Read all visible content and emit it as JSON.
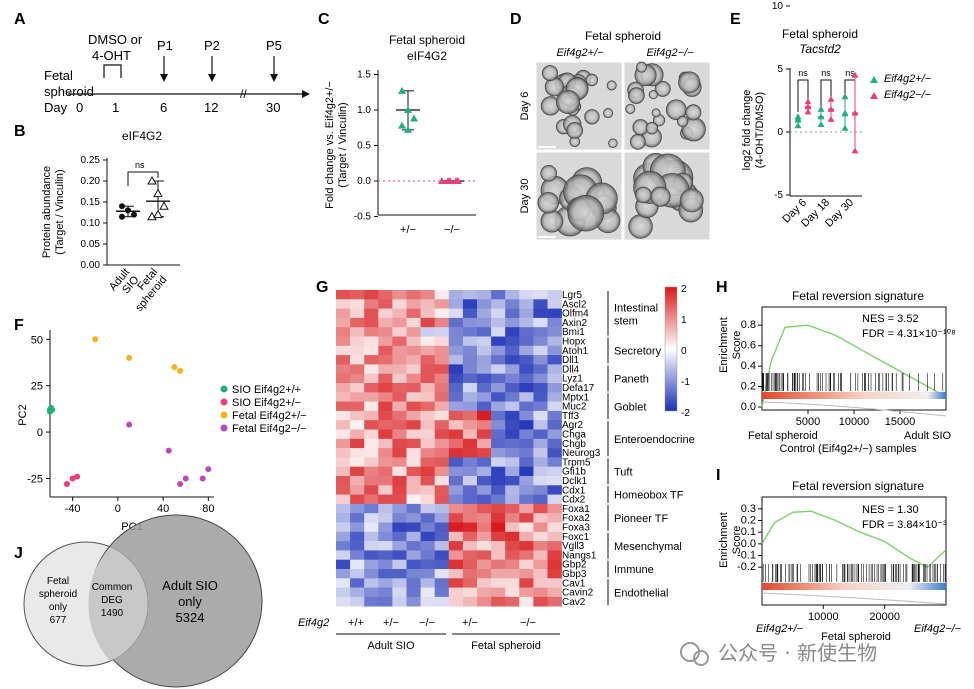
{
  "panels": {
    "A": {
      "letter": "A",
      "treatment": [
        "DMSO or",
        "4-OHT"
      ],
      "row_label": [
        "Fetal",
        "spheroid"
      ],
      "day_label": "Day",
      "days": [
        "0",
        "1",
        "6",
        "12",
        "30"
      ],
      "passages": [
        "P1",
        "P2",
        "P5"
      ]
    },
    "B": {
      "letter": "B",
      "title": "eIF4G2",
      "ylabel": [
        "Protein abundance",
        "(Target / Vinculin)"
      ],
      "yticks": [
        "0.00",
        "0.05",
        "0.10",
        "0.15",
        "0.20",
        "0.25"
      ],
      "categories": [
        "Adult SIO",
        "Fetal spheroid"
      ],
      "ns": "ns"
    },
    "C": {
      "letter": "C",
      "title": [
        "Fetal spheroid",
        "eIF4G2"
      ],
      "ylabel": [
        "Fold change vs. Eif4g2+/−",
        "(Target / Vinculin)"
      ],
      "yticks": [
        "1.5",
        "1.0",
        "0.5",
        "0.0",
        "-0.5"
      ],
      "categories": [
        "+/−",
        "−/−"
      ]
    },
    "D": {
      "letter": "D",
      "title": "Fetal spheroid",
      "columns": [
        "Eif4g2+/−",
        "Eif4g2−/−"
      ],
      "rows": [
        "Day 6",
        "Day 30"
      ]
    },
    "E": {
      "letter": "E",
      "title": [
        "Fetal spheroid",
        "Tacstd2"
      ],
      "ylabel": [
        "log2 fold change",
        "(4-OHT/DMSO)"
      ],
      "yticks": [
        "10",
        "5",
        "0",
        "-5"
      ],
      "categories": [
        "Day 6",
        "Day 18",
        "Day 30"
      ],
      "ns": [
        "ns",
        "ns",
        "ns"
      ],
      "legend": [
        "Eif4g2+/−",
        "Eif4g2−/−"
      ],
      "colors": [
        "#21b07a",
        "#e8417a"
      ]
    },
    "F": {
      "letter": "F",
      "xlabel": "PC1",
      "ylabel": "PC2",
      "xticks": [
        "-40",
        "0",
        "40",
        "80"
      ],
      "yticks": [
        "50",
        "25",
        "0",
        "-25"
      ],
      "legend": [
        "SIO Eif4g2+/+",
        "SIO Eif4g2+/−",
        "Fetal Eif4g2+/−",
        "Fetal Eif4g2−/−"
      ],
      "colors": [
        "#21b07a",
        "#e8417a",
        "#f2b31f",
        "#b94ab8"
      ]
    },
    "G": {
      "letter": "G",
      "colorbar": [
        "2",
        "1",
        "0",
        "-1",
        "-2"
      ],
      "genes": [
        "Lgr5",
        "Ascl2",
        "Olfm4",
        "Axin2",
        "Bmi1",
        "Hopx",
        "Atoh1",
        "Dll1",
        "Dll4",
        "Lyz1",
        "Defa17",
        "Mptx1",
        "Muc2",
        "Tff3",
        "Agr2",
        "Chga",
        "Chgb",
        "Neurog3",
        "Trpm5",
        "Gfi1b",
        "Dclk1",
        "Cdx1",
        "Cdx2",
        "Foxa1",
        "Foxa2",
        "Foxa3",
        "Foxc1",
        "Vgll3",
        "Nangs1",
        "Gbp2",
        "Gbp3",
        "Cav1",
        "Cavin2",
        "Cav2"
      ],
      "groups": [
        "Intestinal stem",
        "Secretory",
        "Paneth",
        "Goblet",
        "Enteroendocrine",
        "Tuft",
        "Homeobox TF",
        "Pioneer TF",
        "Mesenchymal",
        "Immune",
        "Endothelial"
      ],
      "genotype_label": "Eif4g2",
      "genotypes": [
        "+/+",
        "+/−",
        "−/−",
        "+/−",
        "−/−"
      ],
      "conditions": [
        "Adult SIO",
        "Fetal spheroid"
      ]
    },
    "H": {
      "letter": "H",
      "title": "Fetal reversion signature",
      "ylabel": [
        "Enrichment",
        "Score"
      ],
      "yticks": [
        "0.8",
        "0.6",
        "0.4",
        "0.2",
        "0.0"
      ],
      "xticks": [
        "5000",
        "10000",
        "15000"
      ],
      "nes": "NES = 3.52",
      "fdr": "FDR = 4.31×10⁻¹⁰⁸",
      "left_label": "Fetal spheroid",
      "right_label": "Adult SIO",
      "xlabel": "Control (Eif4g2+/−) samples"
    },
    "I": {
      "letter": "I",
      "title": "Fetal reversion signature",
      "ylabel": [
        "Enrichment",
        "Score"
      ],
      "yticks": [
        "0.3",
        "0.2",
        "0.1",
        "0.0",
        "-0.1",
        "-0.2"
      ],
      "xticks": [
        "10000",
        "20000"
      ],
      "nes": "NES = 1.30",
      "fdr": "FDR = 3.84×10⁻³",
      "left_label": "Eif4g2+/−",
      "right_label": "Eif4g2−/−",
      "xlabel": "Fetal spheroid"
    },
    "J": {
      "letter": "J",
      "left": [
        "Fetal",
        "spheroid",
        "only",
        "677"
      ],
      "middle": [
        "Common",
        "DEG",
        "1490"
      ],
      "right": [
        "Adult SIO",
        "only",
        "5324"
      ]
    }
  },
  "watermark": "公众号 · 新使生物",
  "chart_data": [
    {
      "panel": "B",
      "type": "scatter",
      "title": "eIF4G2",
      "ylim": [
        0,
        0.25
      ],
      "categories": [
        "Adult SIO",
        "Fetal spheroid"
      ],
      "series": [
        {
          "name": "Adult SIO",
          "values": [
            0.14,
            0.13,
            0.12,
            0.115,
            0.13
          ]
        },
        {
          "name": "Fetal spheroid",
          "values": [
            0.2,
            0.17,
            0.14,
            0.115,
            0.12
          ]
        }
      ],
      "means": [
        0.128,
        0.152
      ]
    },
    {
      "panel": "C",
      "type": "scatter",
      "title": "Fetal spheroid eIF4G2",
      "ylim": [
        -0.5,
        1.5
      ],
      "categories": [
        "+/−",
        "−/−"
      ],
      "series": [
        {
          "name": "+/−",
          "values": [
            1.27,
            1.0,
            0.88,
            0.78,
            0.72
          ]
        },
        {
          "name": "−/−",
          "values": [
            0.0,
            0.0,
            0.0,
            0.0,
            0.0
          ]
        }
      ],
      "means": [
        1.0,
        0.0
      ]
    },
    {
      "panel": "E",
      "type": "scatter",
      "title": "Fetal spheroid Tacstd2",
      "ylim": [
        -5,
        10
      ],
      "categories": [
        "Day 6",
        "Day 18",
        "Day 30"
      ],
      "series": [
        {
          "name": "Eif4g2+/−",
          "means": [
            0.8,
            1.2,
            1.3
          ],
          "values": [
            [
              0.5,
              1.0,
              1.2
            ],
            [
              0.6,
              1.2,
              1.8
            ],
            [
              0.3,
              1.5,
              2.8
            ]
          ]
        },
        {
          "name": "Eif4g2−/−",
          "means": [
            2.0,
            1.8,
            1.5
          ],
          "values": [
            [
              1.6,
              2.0,
              2.4
            ],
            [
              1.0,
              1.8,
              2.6
            ],
            [
              -1.5,
              1.5,
              4.5
            ]
          ]
        }
      ]
    },
    {
      "panel": "F",
      "type": "scatter",
      "xlabel": "PC1",
      "ylabel": "PC2",
      "xlim": [
        -60,
        85
      ],
      "ylim": [
        -35,
        55
      ],
      "series": [
        {
          "name": "SIO Eif4g2+/+",
          "points": [
            [
              -60,
              12
            ],
            [
              -59,
              13
            ],
            [
              -60,
              11
            ],
            [
              -58,
              12
            ]
          ]
        },
        {
          "name": "SIO Eif4g2+/−",
          "points": [
            [
              -45,
              -28
            ],
            [
              -40,
              -25
            ],
            [
              -36,
              -24
            ]
          ]
        },
        {
          "name": "Fetal Eif4g2+/−",
          "points": [
            [
              -20,
              50
            ],
            [
              10,
              40
            ],
            [
              50,
              35
            ],
            [
              55,
              33
            ]
          ]
        },
        {
          "name": "Fetal Eif4g2−/−",
          "points": [
            [
              10,
              4
            ],
            [
              45,
              -10
            ],
            [
              60,
              -25
            ],
            [
              75,
              -25
            ],
            [
              55,
              -28
            ],
            [
              80,
              -20
            ]
          ]
        }
      ]
    },
    {
      "panel": "H",
      "type": "line",
      "title": "Fetal reversion signature",
      "ylim": [
        0,
        0.9
      ],
      "xlim": [
        0,
        20000
      ],
      "x": [
        0,
        1000,
        2500,
        5000,
        8000,
        11000,
        14000,
        17000,
        20000
      ],
      "values": [
        0.0,
        0.45,
        0.78,
        0.8,
        0.7,
        0.55,
        0.4,
        0.25,
        0.1
      ]
    },
    {
      "panel": "I",
      "type": "line",
      "title": "Fetal reversion signature",
      "ylim": [
        -0.25,
        0.35
      ],
      "xlim": [
        0,
        30000
      ],
      "x": [
        0,
        2000,
        5000,
        8000,
        12000,
        16000,
        20000,
        24000,
        27000,
        30000
      ],
      "values": [
        0.0,
        0.18,
        0.27,
        0.28,
        0.2,
        0.1,
        0.02,
        -0.12,
        -0.2,
        -0.05
      ]
    }
  ]
}
